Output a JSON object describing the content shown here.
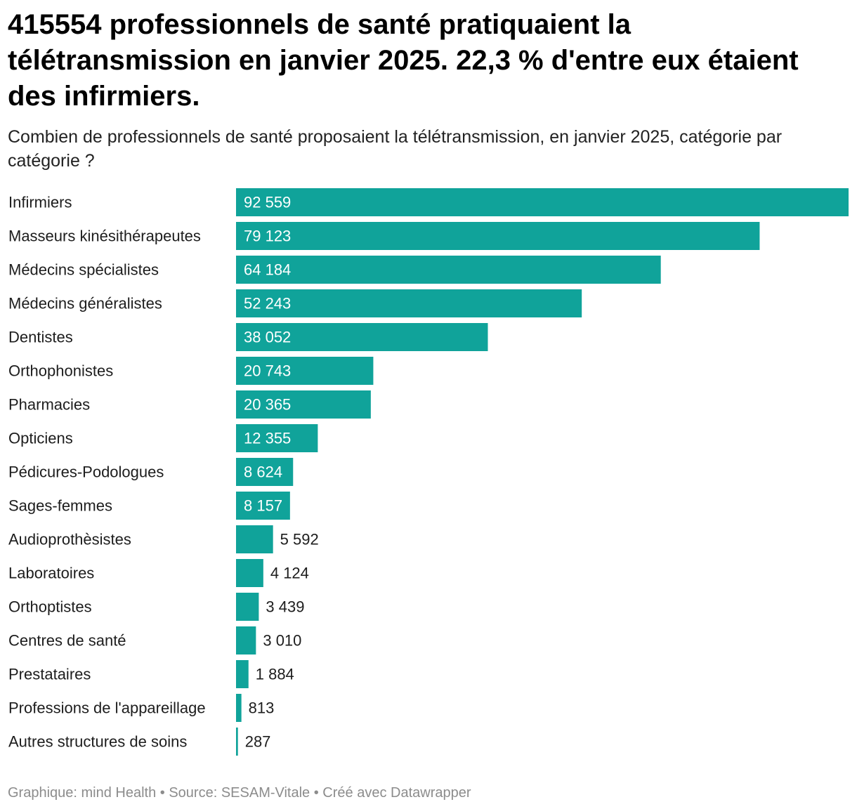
{
  "title": "415554 professionnels de santé pratiquaient la télétransmission en janvier 2025. 22,3 % d'entre eux étaient des infirmiers.",
  "subtitle": "Combien de professionnels de santé proposaient la télétransmission, en janvier 2025, catégorie par catégorie ?",
  "footer": "Graphique: mind Health • Source: SESAM-Vitale • Créé avec Datawrapper",
  "colors": {
    "bar": "#10a39a",
    "label_inside": "#ffffff",
    "label_outside": "#1d1d1d"
  },
  "chart_data": {
    "type": "bar",
    "orientation": "horizontal",
    "categories": [
      "Infirmiers",
      "Masseurs kinésithérapeutes",
      "Médecins spécialistes",
      "Médecins généralistes",
      "Dentistes",
      "Orthophonistes",
      "Pharmacies",
      "Opticiens",
      "Pédicures-Podologues",
      "Sages-femmes",
      "Audioprothèsistes",
      "Laboratoires",
      "Orthoptistes",
      "Centres de santé",
      "Prestataires",
      "Professions de l'appareillage",
      "Autres structures de soins"
    ],
    "values": [
      92559,
      79123,
      64184,
      52243,
      38052,
      20743,
      20365,
      12355,
      8624,
      8157,
      5592,
      4124,
      3439,
      3010,
      1884,
      813,
      287
    ],
    "value_labels": [
      "92 559",
      "79 123",
      "64 184",
      "52 243",
      "38 052",
      "20 743",
      "20 365",
      "12 355",
      "8 624",
      "8 157",
      "5 592",
      "4 124",
      "3 439",
      "3 010",
      "1 884",
      "813",
      "287"
    ],
    "xlim": [
      0,
      92559
    ],
    "grid": false,
    "legend": "none"
  }
}
